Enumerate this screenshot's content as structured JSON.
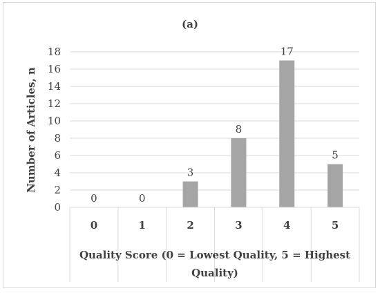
{
  "chart_data": {
    "type": "bar",
    "title": "(a)",
    "xlabel": "Quality Score (0 = Lowest Quality, 5 = Highest Quality)",
    "xlabel_lines": [
      "Quality Score (0 = Lowest Quality, 5 = Highest",
      "Quality)"
    ],
    "ylabel": "Number of Articles, n",
    "categories": [
      "0",
      "1",
      "2",
      "3",
      "4",
      "5"
    ],
    "values": [
      0,
      0,
      3,
      8,
      17,
      5
    ],
    "ylim": [
      0,
      18
    ],
    "yticks": [
      0,
      2,
      4,
      6,
      8,
      10,
      12,
      14,
      16,
      18
    ],
    "grid": true,
    "legend": "none",
    "bar_color": "#a5a5a5",
    "grid_color": "#d9d9d9",
    "text_color": "#404040"
  }
}
